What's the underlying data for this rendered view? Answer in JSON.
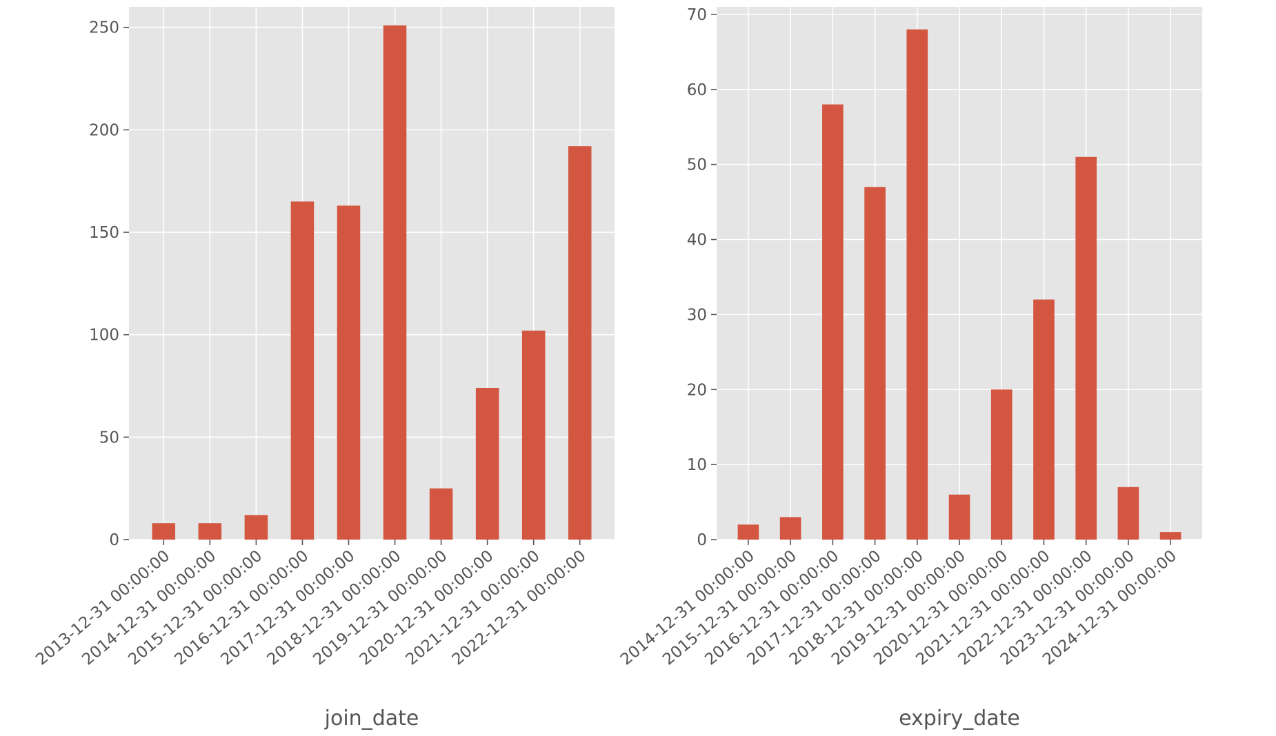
{
  "chart_data": [
    {
      "type": "bar",
      "title": "",
      "xlabel": "join_date",
      "ylabel": "",
      "ylim": [
        0,
        260
      ],
      "yticks": [
        0,
        50,
        100,
        150,
        200,
        250
      ],
      "grid": true,
      "style": "ggplot",
      "bar_color": "#d35640",
      "categories": [
        "2013-12-31 00:00:00",
        "2014-12-31 00:00:00",
        "2015-12-31 00:00:00",
        "2016-12-31 00:00:00",
        "2017-12-31 00:00:00",
        "2018-12-31 00:00:00",
        "2019-12-31 00:00:00",
        "2020-12-31 00:00:00",
        "2021-12-31 00:00:00",
        "2022-12-31 00:00:00"
      ],
      "values": [
        8,
        8,
        12,
        165,
        163,
        251,
        25,
        74,
        102,
        192
      ]
    },
    {
      "type": "bar",
      "title": "",
      "xlabel": "expiry_date",
      "ylabel": "",
      "ylim": [
        0,
        71
      ],
      "yticks": [
        0,
        10,
        20,
        30,
        40,
        50,
        60,
        70
      ],
      "grid": true,
      "style": "ggplot",
      "bar_color": "#d35640",
      "categories": [
        "2014-12-31 00:00:00",
        "2015-12-31 00:00:00",
        "2016-12-31 00:00:00",
        "2017-12-31 00:00:00",
        "2018-12-31 00:00:00",
        "2019-12-31 00:00:00",
        "2020-12-31 00:00:00",
        "2021-12-31 00:00:00",
        "2022-12-31 00:00:00",
        "2023-12-31 00:00:00",
        "2024-12-31 00:00:00"
      ],
      "values": [
        2,
        3,
        58,
        47,
        68,
        6,
        20,
        32,
        51,
        7,
        1
      ]
    }
  ]
}
